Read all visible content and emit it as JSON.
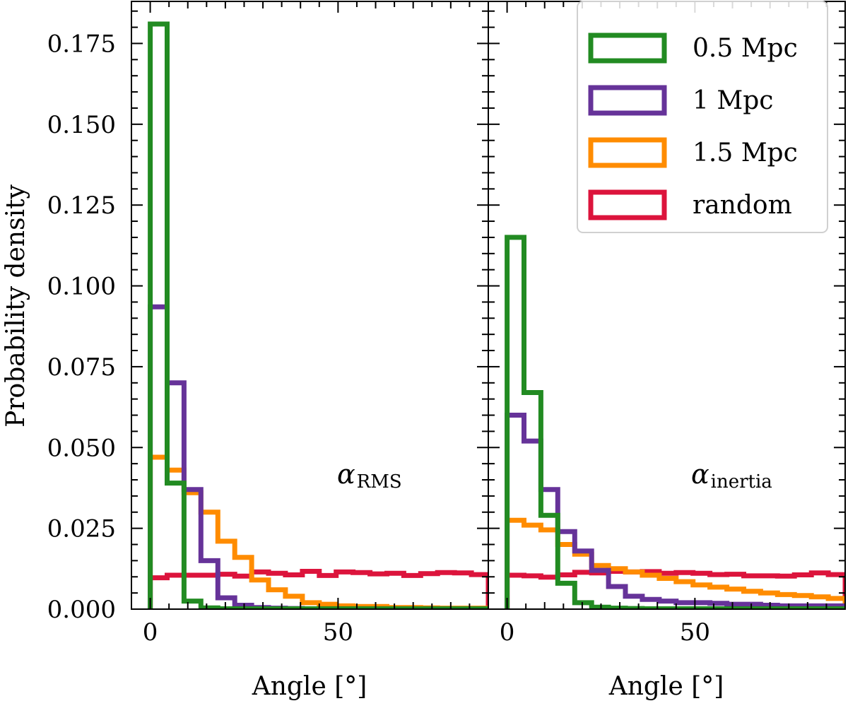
{
  "chart_data": [
    {
      "type": "histogram-step",
      "panel": "left",
      "annotation": {
        "symbol": "α",
        "subscript": "RMS"
      },
      "xlabel": "Angle [°]",
      "ylabel": "Probability density",
      "xlim": [
        -5,
        90
      ],
      "ylim": [
        0,
        0.188
      ],
      "xticks": [
        0,
        50
      ],
      "yticks": [
        "0.000",
        "0.025",
        "0.050",
        "0.075",
        "0.100",
        "0.125",
        "0.150",
        "0.175"
      ],
      "bin_edges": [
        0,
        4.5,
        9,
        13.5,
        18,
        22.5,
        27,
        31.5,
        36,
        40.5,
        45,
        49.5,
        54,
        58.5,
        63,
        67.5,
        72,
        76.5,
        81,
        85.5,
        90
      ],
      "series": [
        {
          "name": "random",
          "color": "#dc143c",
          "values": [
            0.0097,
            0.0105,
            0.0105,
            0.0105,
            0.0108,
            0.0102,
            0.0115,
            0.0111,
            0.0106,
            0.0117,
            0.0104,
            0.0115,
            0.0113,
            0.0109,
            0.0111,
            0.0104,
            0.011,
            0.0113,
            0.0112,
            0.0107
          ]
        },
        {
          "name": "1.5 Mpc",
          "color": "#ff8c00",
          "values": [
            0.047,
            0.043,
            0.036,
            0.03,
            0.021,
            0.016,
            0.009,
            0.006,
            0.004,
            0.002,
            0.0015,
            0.001,
            0.0008,
            0.0008,
            0.0005,
            0.0005,
            0.0004,
            0.0003,
            0.0003,
            0.0003
          ]
        },
        {
          "name": "1 Mpc",
          "color": "#663399",
          "values": [
            0.0935,
            0.07,
            0.037,
            0.015,
            0.0035,
            0.0012,
            0.0005,
            0.0003,
            0.0002,
            0.0001,
            0.0001,
            0.0001,
            0.0001,
            0.0001,
            0.0001,
            0.0001,
            0.0001,
            0.0001,
            0.0001,
            0.0001
          ]
        },
        {
          "name": "0.5 Mpc",
          "color": "#228b22",
          "values": [
            0.181,
            0.039,
            0.0025,
            0.0004,
            0.0001,
            0.0001,
            0.0001,
            0.0001,
            0.0001,
            0.0001,
            0.0001,
            0.0001,
            0.0001,
            0.0001,
            0.0001,
            0.0001,
            0.0001,
            0.0001,
            0.0001,
            0.0001
          ]
        }
      ]
    },
    {
      "type": "histogram-step",
      "panel": "right",
      "annotation": {
        "symbol": "α",
        "subscript": "inertia"
      },
      "xlabel": "Angle [°]",
      "xlim": [
        -5,
        90
      ],
      "ylim": [
        0,
        0.188
      ],
      "xticks": [
        0,
        50
      ],
      "bin_edges": [
        0,
        4.5,
        9,
        13.5,
        18,
        22.5,
        27,
        31.5,
        36,
        40.5,
        45,
        49.5,
        54,
        58.5,
        63,
        67.5,
        72,
        76.5,
        81,
        85.5,
        90
      ],
      "series": [
        {
          "name": "random",
          "color": "#dc143c",
          "values": [
            0.0105,
            0.0103,
            0.0099,
            0.0106,
            0.0114,
            0.0112,
            0.0117,
            0.0115,
            0.0116,
            0.0111,
            0.0113,
            0.0111,
            0.0107,
            0.0108,
            0.0103,
            0.0103,
            0.0102,
            0.0106,
            0.0112,
            0.0107
          ]
        },
        {
          "name": "1.5 Mpc",
          "color": "#ff8c00",
          "values": [
            0.0275,
            0.026,
            0.0245,
            0.02,
            0.017,
            0.0135,
            0.0125,
            0.0115,
            0.0105,
            0.0095,
            0.0085,
            0.0075,
            0.0068,
            0.0062,
            0.0055,
            0.005,
            0.0045,
            0.0042,
            0.0038,
            0.0033
          ]
        },
        {
          "name": "1 Mpc",
          "color": "#663399",
          "values": [
            0.06,
            0.052,
            0.037,
            0.024,
            0.018,
            0.012,
            0.007,
            0.004,
            0.003,
            0.0025,
            0.002,
            0.002,
            0.0018,
            0.0015,
            0.0015,
            0.0012,
            0.001,
            0.001,
            0.001,
            0.001
          ]
        },
        {
          "name": "0.5 Mpc",
          "color": "#228b22",
          "values": [
            0.115,
            0.067,
            0.029,
            0.008,
            0.002,
            0.0006,
            0.0003,
            0.0002,
            0.0001,
            0.0001,
            0.0001,
            0.0001,
            0.0001,
            0.0001,
            0.0001,
            0.0001,
            0.0001,
            0.0001,
            0.0001,
            0.0001
          ]
        }
      ]
    }
  ],
  "legend": {
    "placement": "top-right",
    "entries": [
      {
        "label": "0.5 Mpc",
        "color": "#228b22"
      },
      {
        "label": "1 Mpc",
        "color": "#663399"
      },
      {
        "label": "1.5 Mpc",
        "color": "#ff8c00"
      },
      {
        "label": "random",
        "color": "#dc143c"
      }
    ]
  }
}
